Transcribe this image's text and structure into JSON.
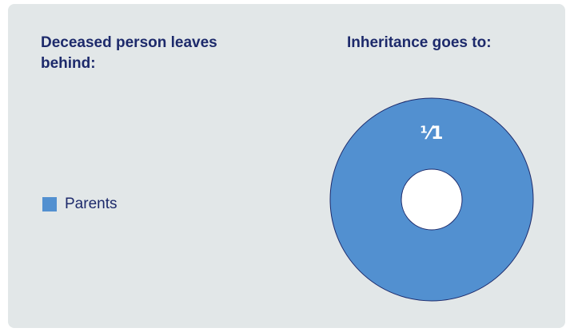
{
  "left_heading": "Deceased person leaves behind:",
  "right_heading": "Inheritance goes to:",
  "colors": {
    "card_background": "#e2e7e8",
    "heading_text": "#1d2a6b",
    "slice_fill": "#5290d0",
    "slice_stroke": "#1d2a6b",
    "hole_fill": "#ffffff"
  },
  "legend": [
    {
      "label": "Parents",
      "color": "#5290d0"
    }
  ],
  "chart_data": {
    "type": "pie",
    "variant": "donut",
    "title": "Inheritance goes to:",
    "slices": [
      {
        "label": "Parents",
        "value": 1,
        "share_label": "⅟1",
        "color": "#5290d0"
      }
    ]
  }
}
